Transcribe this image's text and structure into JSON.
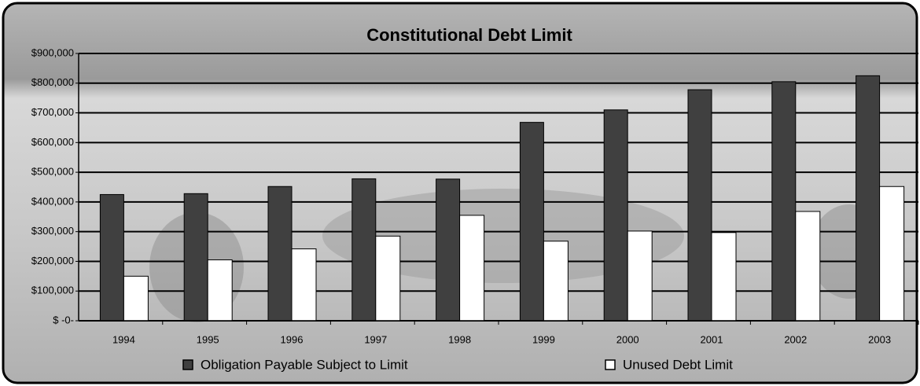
{
  "chart_data": {
    "type": "bar",
    "title": "Constitutional Debt Limit",
    "categories": [
      "1994",
      "1995",
      "1996",
      "1997",
      "1998",
      "1999",
      "2000",
      "2001",
      "2002",
      "2003"
    ],
    "series": [
      {
        "name": "Obligation Payable Subject to Limit",
        "color": "#404040",
        "values": [
          425000,
          428000,
          452000,
          478000,
          477000,
          668000,
          710000,
          778000,
          805000,
          825000
        ]
      },
      {
        "name": "Unused Debt Limit",
        "color": "#ffffff",
        "values": [
          150000,
          205000,
          242000,
          285000,
          355000,
          268000,
          302000,
          297000,
          368000,
          452000
        ]
      }
    ],
    "ylim": [
      0,
      900000
    ],
    "yticks": [
      {
        "value": 0,
        "label": "$ -0-"
      },
      {
        "value": 100000,
        "label": "$100,000"
      },
      {
        "value": 200000,
        "label": "$200,000"
      },
      {
        "value": 300000,
        "label": "$300,000"
      },
      {
        "value": 400000,
        "label": "$400,000"
      },
      {
        "value": 500000,
        "label": "$500,000"
      },
      {
        "value": 600000,
        "label": "$600,000"
      },
      {
        "value": 700000,
        "label": "$700,000"
      },
      {
        "value": 800000,
        "label": "$800,000"
      },
      {
        "value": 900000,
        "label": "$900,000"
      }
    ],
    "grid": true
  }
}
